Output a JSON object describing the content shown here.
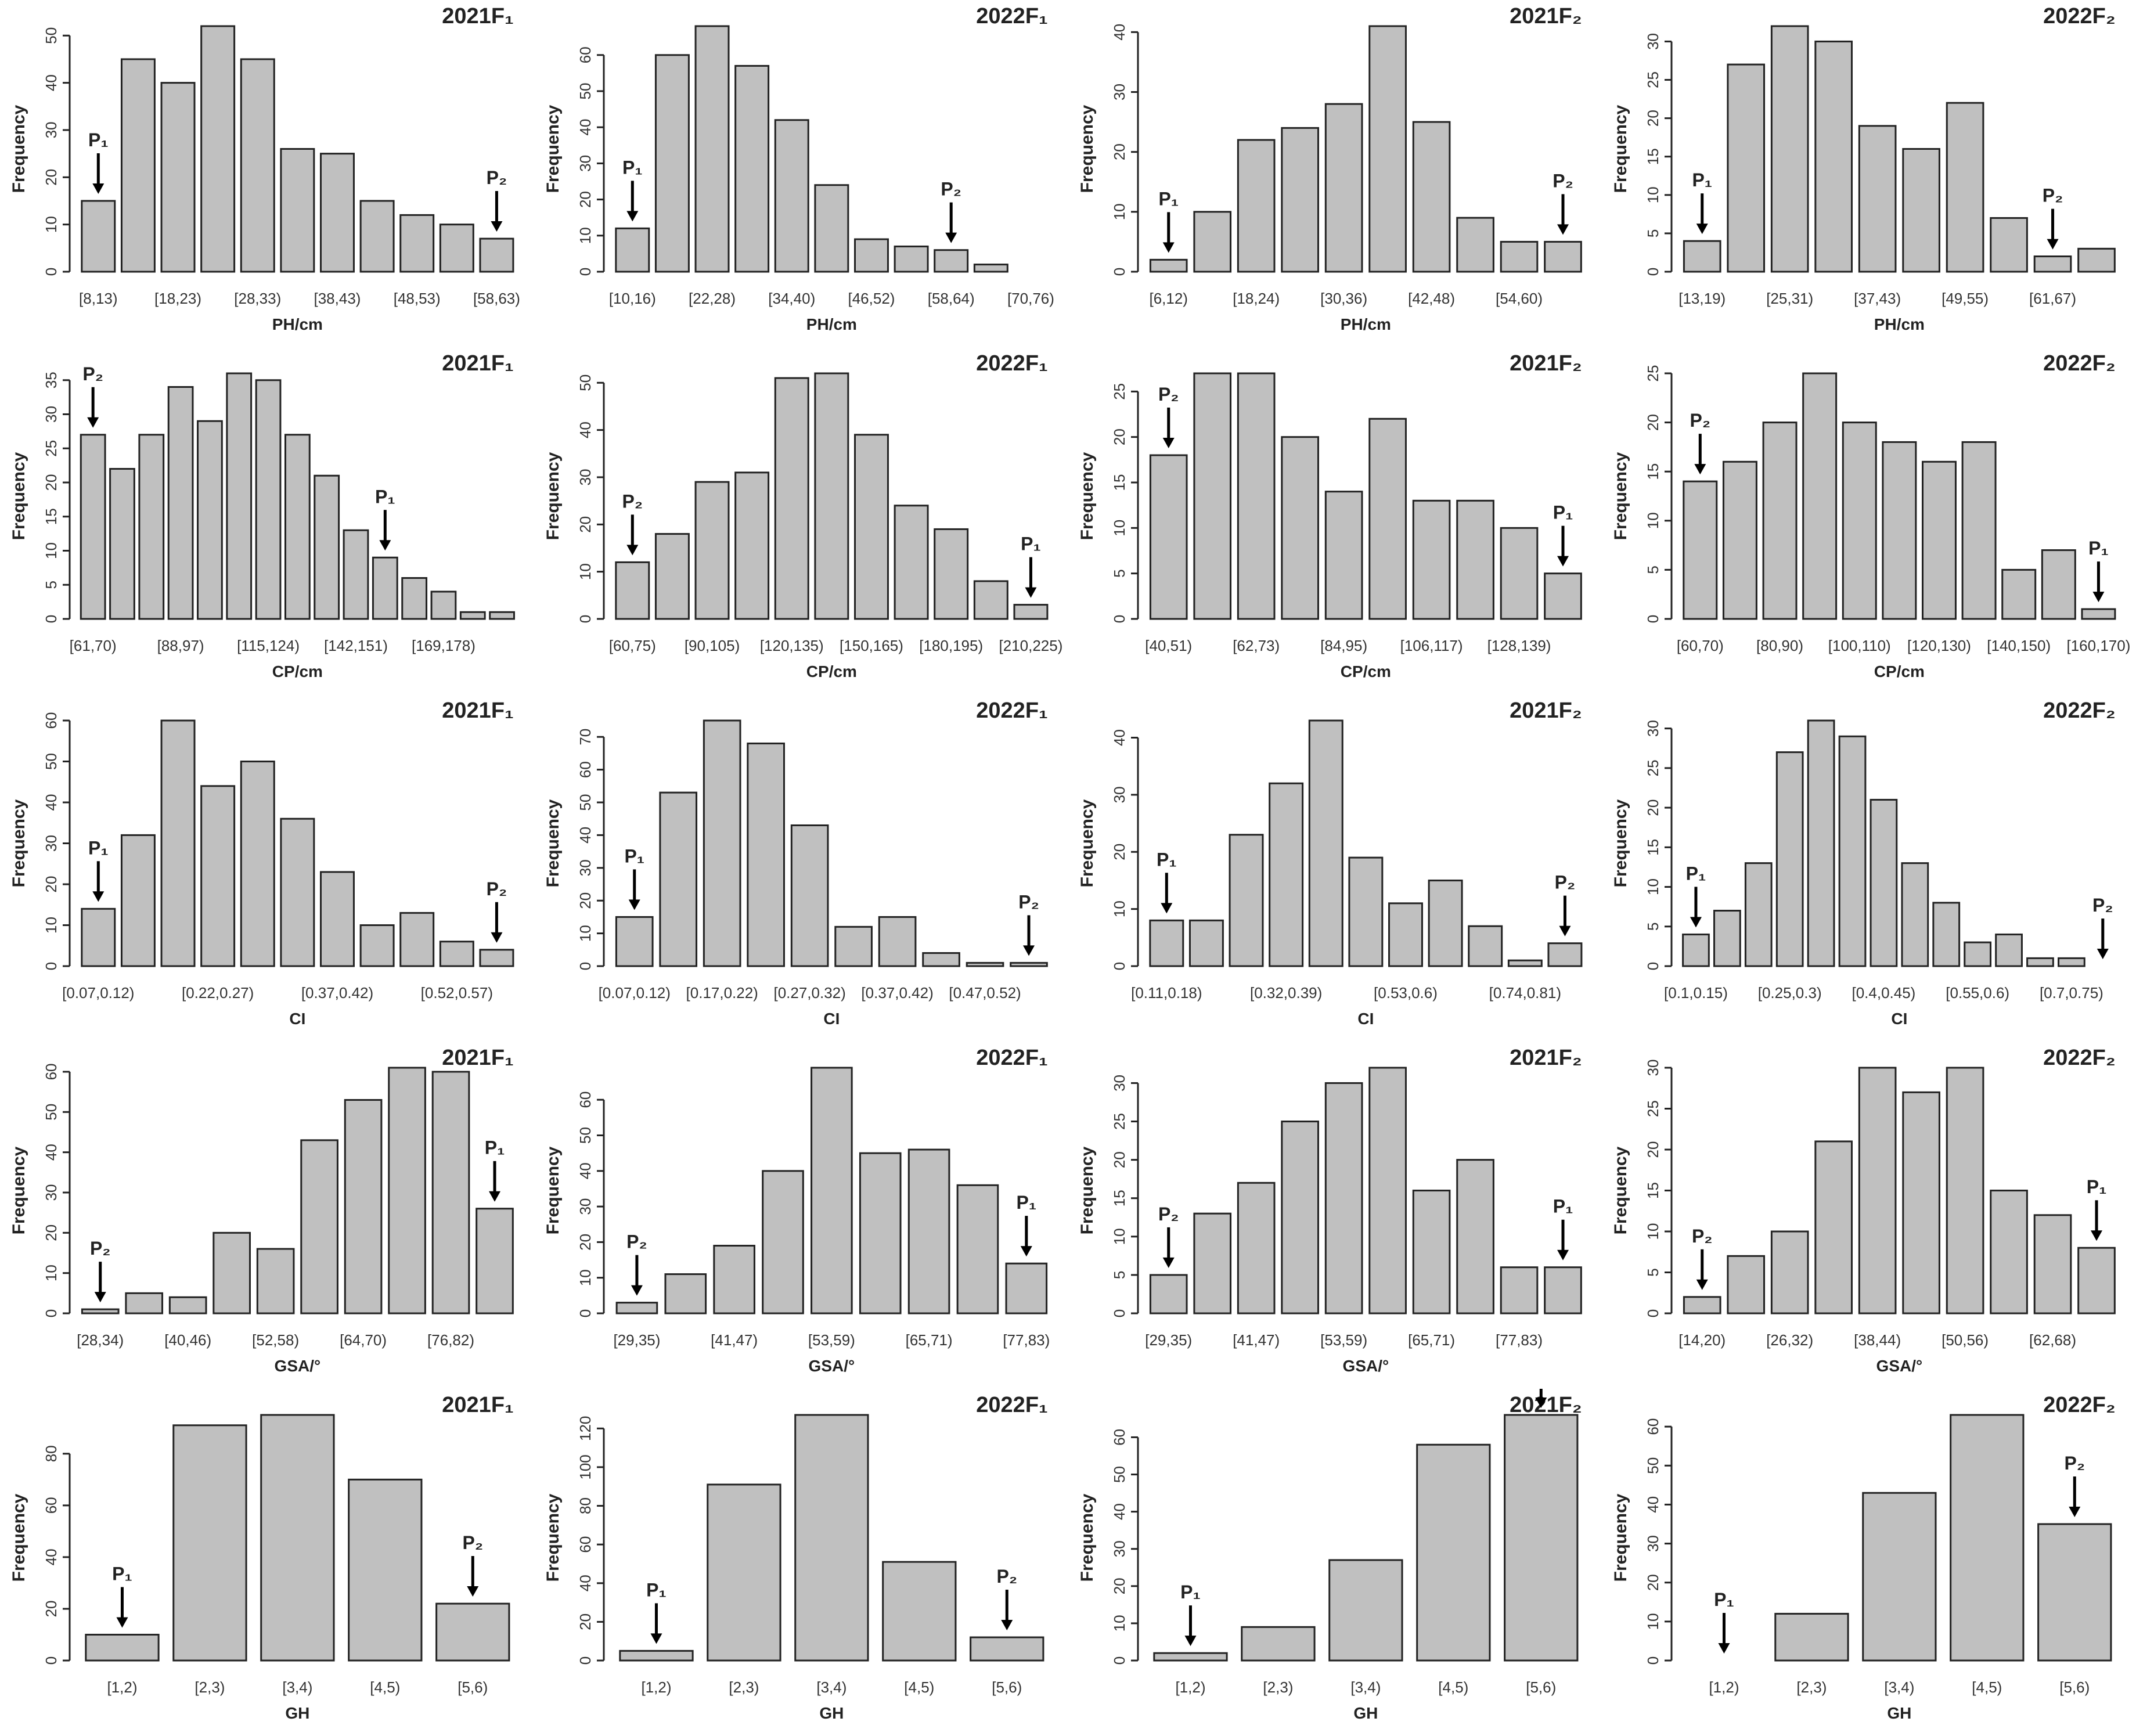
{
  "chart_data": [
    {
      "type": "bar",
      "title": "2021F₁",
      "xlabel": "PH/cm",
      "ylabel": "Frequency",
      "ylim": [
        0,
        52
      ],
      "yticks": [
        0,
        10,
        20,
        30,
        40,
        50
      ],
      "categories": [
        "[8,13)",
        "[13,18)",
        "[18,23)",
        "[23,28)",
        "[28,33)",
        "[33,38)",
        "[38,43)",
        "[43,48)",
        "[48,53)",
        "[53,58)",
        "[58,63)"
      ],
      "shown_labels": [
        "[8,13)",
        "[18,23)",
        "[28,33)",
        "[38,43)",
        "[48,53)",
        "[58,63)"
      ],
      "values": [
        15,
        45,
        40,
        52,
        45,
        26,
        25,
        15,
        12,
        10,
        7
      ],
      "markers": [
        {
          "label": "P₁",
          "index": 0
        },
        {
          "label": "P₂",
          "index": 10
        }
      ]
    },
    {
      "type": "bar",
      "title": "2022F₁",
      "xlabel": "PH/cm",
      "ylabel": "Frequency",
      "ylim": [
        0,
        68
      ],
      "yticks": [
        0,
        10,
        20,
        30,
        40,
        50,
        60
      ],
      "categories": [
        "[10,16)",
        "[16,22)",
        "[22,28)",
        "[28,34)",
        "[34,40)",
        "[40,46)",
        "[46,52)",
        "[52,58)",
        "[58,64)",
        "[64,70)",
        "[70,76)"
      ],
      "shown_labels": [
        "[10,16)",
        "[22,28)",
        "[34,40)",
        "[46,52)",
        "[58,64)",
        "[70,76)"
      ],
      "values": [
        12,
        60,
        68,
        57,
        42,
        24,
        9,
        7,
        6,
        2,
        0
      ],
      "markers": [
        {
          "label": "P₁",
          "index": 0
        },
        {
          "label": "P₂",
          "index": 8
        }
      ]
    },
    {
      "type": "bar",
      "title": "2021F₂",
      "xlabel": "PH/cm",
      "ylabel": "Frequency",
      "ylim": [
        0,
        41
      ],
      "yticks": [
        0,
        10,
        20,
        30,
        40
      ],
      "categories": [
        "[6,12)",
        "[12,18)",
        "[18,24)",
        "[24,30)",
        "[30,36)",
        "[36,42)",
        "[42,48)",
        "[48,54)",
        "[54,60)",
        "[60,66)"
      ],
      "shown_labels": [
        "[6,12)",
        "[18,24)",
        "[30,36)",
        "[42,48)",
        "[54,60)"
      ],
      "values": [
        2,
        10,
        22,
        24,
        28,
        41,
        25,
        9,
        5,
        5
      ],
      "markers": [
        {
          "label": "P₁",
          "index": 0
        },
        {
          "label": "P₂",
          "index": 9
        }
      ]
    },
    {
      "type": "bar",
      "title": "2022F₂",
      "xlabel": "PH/cm",
      "ylabel": "Frequency",
      "ylim": [
        0,
        32
      ],
      "yticks": [
        0,
        5,
        10,
        15,
        20,
        25,
        30
      ],
      "categories": [
        "[13,19)",
        "[19,25)",
        "[25,31)",
        "[31,37)",
        "[37,43)",
        "[43,49)",
        "[49,55)",
        "[55,61)",
        "[61,67)",
        "[67,73)"
      ],
      "shown_labels": [
        "[13,19)",
        "[25,31)",
        "[37,43)",
        "[49,55)",
        "[61,67)"
      ],
      "values": [
        4,
        27,
        32,
        30,
        19,
        16,
        22,
        7,
        2,
        3
      ],
      "markers": [
        {
          "label": "P₁",
          "index": 0
        },
        {
          "label": "P₂",
          "index": 8
        }
      ]
    },
    {
      "type": "bar",
      "title": "2021F₁",
      "xlabel": "CP/cm",
      "ylabel": "Frequency",
      "ylim": [
        0,
        36
      ],
      "yticks": [
        0,
        5,
        10,
        15,
        20,
        25,
        30,
        35
      ],
      "categories": [
        "[61,70)",
        "[70,79)",
        "[79,88)",
        "[88,97)",
        "[97,106)",
        "[106,115)",
        "[115,124)",
        "[124,133)",
        "[133,142)",
        "[142,151)",
        "[151,160)",
        "[160,169)",
        "[169,178)",
        "[178,187)",
        "[187,196)"
      ],
      "shown_labels": [
        "[61,70)",
        "[88,97)",
        "[115,124)",
        "[142,151)",
        "[169,178)"
      ],
      "values": [
        27,
        22,
        27,
        34,
        29,
        36,
        35,
        27,
        21,
        13,
        9,
        6,
        4,
        1,
        1
      ],
      "markers": [
        {
          "label": "P₂",
          "index": 0
        },
        {
          "label": "P₁",
          "index": 10
        }
      ]
    },
    {
      "type": "bar",
      "title": "2022F₁",
      "xlabel": "CP/cm",
      "ylabel": "Frequency",
      "ylim": [
        0,
        52
      ],
      "yticks": [
        0,
        10,
        20,
        30,
        40,
        50
      ],
      "categories": [
        "[60,75)",
        "[75,90)",
        "[90,105)",
        "[105,120)",
        "[120,135)",
        "[135,150)",
        "[150,165)",
        "[165,180)",
        "[180,195)",
        "[195,210)",
        "[210,225)"
      ],
      "shown_labels": [
        "[60,75)",
        "[90,105)",
        "[120,135)",
        "[150,165)",
        "[180,195)",
        "[210,225)"
      ],
      "values": [
        12,
        18,
        29,
        31,
        51,
        52,
        39,
        24,
        19,
        8,
        3
      ],
      "markers": [
        {
          "label": "P₂",
          "index": 0
        },
        {
          "label": "P₁",
          "index": 10
        }
      ]
    },
    {
      "type": "bar",
      "title": "2021F₂",
      "xlabel": "CP/cm",
      "ylabel": "Frequency",
      "ylim": [
        0,
        27
      ],
      "yticks": [
        0,
        5,
        10,
        15,
        20,
        25
      ],
      "categories": [
        "[40,51)",
        "[51,62)",
        "[62,73)",
        "[73,84)",
        "[84,95)",
        "[95,106)",
        "[106,117)",
        "[117,128)",
        "[128,139)",
        "[139,150)"
      ],
      "shown_labels": [
        "[40,51)",
        "[62,73)",
        "[84,95)",
        "[106,117)",
        "[128,139)"
      ],
      "values": [
        18,
        27,
        27,
        20,
        14,
        22,
        13,
        13,
        10,
        5
      ],
      "markers": [
        {
          "label": "P₂",
          "index": 0
        },
        {
          "label": "P₁",
          "index": 9
        }
      ]
    },
    {
      "type": "bar",
      "title": "2022F₂",
      "xlabel": "CP/cm",
      "ylabel": "Frequency",
      "ylim": [
        0,
        25
      ],
      "yticks": [
        0,
        5,
        10,
        15,
        20,
        25
      ],
      "categories": [
        "[60,70)",
        "[70,80)",
        "[80,90)",
        "[90,100)",
        "[100,110)",
        "[110,120)",
        "[120,130)",
        "[130,140)",
        "[140,150)",
        "[150,160)",
        "[160,170)"
      ],
      "shown_labels": [
        "[60,70)",
        "[80,90)",
        "[100,110)",
        "[120,130)",
        "[140,150)",
        "[160,170)"
      ],
      "values": [
        14,
        16,
        20,
        25,
        20,
        18,
        16,
        18,
        5,
        7,
        1
      ],
      "markers": [
        {
          "label": "P₂",
          "index": 0
        },
        {
          "label": "P₁",
          "index": 10
        }
      ]
    },
    {
      "type": "bar",
      "title": "2021F₁",
      "xlabel": "CI",
      "ylabel": "Frequency",
      "ylim": [
        0,
        60
      ],
      "yticks": [
        0,
        10,
        20,
        30,
        40,
        50,
        60
      ],
      "categories": [
        "[0.07,0.12)",
        "[0.12,0.17)",
        "[0.17,0.22)",
        "[0.22,0.27)",
        "[0.27,0.32)",
        "[0.32,0.37)",
        "[0.37,0.42)",
        "[0.42,0.47)",
        "[0.47,0.52)",
        "[0.52,0.57)",
        "[0.57,0.62)"
      ],
      "shown_labels": [
        "[0.07,0.12)",
        "[0.22,0.27)",
        "[0.37,0.42)",
        "[0.52,0.57)"
      ],
      "values": [
        14,
        32,
        60,
        44,
        50,
        36,
        23,
        10,
        13,
        6,
        4
      ],
      "markers": [
        {
          "label": "P₁",
          "index": 0
        },
        {
          "label": "P₂",
          "index": 10
        }
      ]
    },
    {
      "type": "bar",
      "title": "2022F₁",
      "xlabel": "CI",
      "ylabel": "Frequency",
      "ylim": [
        0,
        75
      ],
      "yticks": [
        0,
        10,
        20,
        30,
        40,
        50,
        60,
        70
      ],
      "categories": [
        "[0.07,0.12)",
        "[0.12,0.17)",
        "[0.17,0.22)",
        "[0.22,0.27)",
        "[0.27,0.32)",
        "[0.32,0.37)",
        "[0.37,0.42)",
        "[0.42,0.47)",
        "[0.47,0.52)",
        "[0.52,0.57)"
      ],
      "shown_labels": [
        "[0.07,0.12)",
        "[0.17,0.22)",
        "[0.27,0.32)",
        "[0.37,0.42)",
        "[0.47,0.52)"
      ],
      "values": [
        15,
        53,
        75,
        68,
        43,
        12,
        15,
        4,
        1,
        1
      ],
      "markers": [
        {
          "label": "P₁",
          "index": 0
        },
        {
          "label": "P₂",
          "index": 9
        }
      ]
    },
    {
      "type": "bar",
      "title": "2021F₂",
      "xlabel": "CI",
      "ylabel": "Frequency",
      "ylim": [
        0,
        43
      ],
      "yticks": [
        0,
        10,
        20,
        30,
        40
      ],
      "categories": [
        "[0.11,0.18)",
        "[0.18,0.25)",
        "[0.25,0.32)",
        "[0.32,0.39)",
        "[0.39,0.46)",
        "[0.46,0.53)",
        "[0.53,0.6)",
        "[0.6,0.67)",
        "[0.67,0.74)",
        "[0.74,0.81)",
        "[0.81,0.88)"
      ],
      "shown_labels": [
        "[0.11,0.18)",
        "[0.32,0.39)",
        "[0.53,0.6)",
        "[0.74,0.81)"
      ],
      "values": [
        8,
        8,
        23,
        32,
        43,
        19,
        11,
        15,
        7,
        1,
        4
      ],
      "markers": [
        {
          "label": "P₁",
          "index": 0
        },
        {
          "label": "P₂",
          "index": 10
        }
      ]
    },
    {
      "type": "bar",
      "title": "2022F₂",
      "xlabel": "CI",
      "ylabel": "Frequency",
      "ylim": [
        0,
        31
      ],
      "yticks": [
        0,
        5,
        10,
        15,
        20,
        25,
        30
      ],
      "categories": [
        "[0.1,0.15)",
        "[0.15,0.2)",
        "[0.2,0.25)",
        "[0.25,0.3)",
        "[0.3,0.35)",
        "[0.35,0.4)",
        "[0.4,0.45)",
        "[0.45,0.5)",
        "[0.5,0.55)",
        "[0.55,0.6)",
        "[0.6,0.65)",
        "[0.65,0.7)",
        "[0.7,0.75)",
        "[0.75,0.8)"
      ],
      "shown_labels": [
        "[0.1,0.15)",
        "[0.25,0.3)",
        "[0.4,0.45)",
        "[0.55,0.6)",
        "[0.7,0.75)"
      ],
      "values": [
        4,
        7,
        13,
        27,
        31,
        29,
        21,
        13,
        8,
        3,
        4,
        1,
        1,
        0
      ],
      "markers": [
        {
          "label": "P₁",
          "index": 0
        },
        {
          "label": "P₂",
          "index": 13
        }
      ]
    },
    {
      "type": "bar",
      "title": "2021F₁",
      "xlabel": "GSA/°",
      "ylabel": "Frequency",
      "ylim": [
        0,
        61
      ],
      "yticks": [
        0,
        10,
        20,
        30,
        40,
        50,
        60
      ],
      "categories": [
        "[28,34)",
        "[34,40)",
        "[40,46)",
        "[46,52)",
        "[52,58)",
        "[58,64)",
        "[64,70)",
        "[70,76)",
        "[76,82)",
        "[82,88)"
      ],
      "shown_labels": [
        "[28,34)",
        "[40,46)",
        "[52,58)",
        "[64,70)",
        "[76,82)"
      ],
      "values": [
        1,
        5,
        4,
        20,
        16,
        43,
        53,
        61,
        60,
        26
      ],
      "markers": [
        {
          "label": "P₂",
          "index": 0
        },
        {
          "label": "P₁",
          "index": 9
        }
      ]
    },
    {
      "type": "bar",
      "title": "2022F₁",
      "xlabel": "GSA/°",
      "ylabel": "Frequency",
      "ylim": [
        0,
        69
      ],
      "yticks": [
        0,
        10,
        20,
        30,
        40,
        50,
        60
      ],
      "categories": [
        "[29,35)",
        "[35,41)",
        "[41,47)",
        "[47,53)",
        "[53,59)",
        "[59,65)",
        "[65,71)",
        "[71,77)",
        "[77,83)"
      ],
      "shown_labels": [
        "[29,35)",
        "[41,47)",
        "[53,59)",
        "[65,71)",
        "[77,83)"
      ],
      "values": [
        3,
        11,
        19,
        40,
        69,
        45,
        46,
        36,
        14
      ],
      "markers": [
        {
          "label": "P₂",
          "index": 0
        },
        {
          "label": "P₁",
          "index": 8
        }
      ]
    },
    {
      "type": "bar",
      "title": "2021F₂",
      "xlabel": "GSA/°",
      "ylabel": "Frequency",
      "ylim": [
        0,
        32
      ],
      "yticks": [
        0,
        5,
        10,
        15,
        20,
        25,
        30
      ],
      "categories": [
        "[29,35)",
        "[35,41)",
        "[41,47)",
        "[47,53)",
        "[53,59)",
        "[59,65)",
        "[65,71)",
        "[71,77)",
        "[77,83)",
        "[83,89)"
      ],
      "shown_labels": [
        "[29,35)",
        "[41,47)",
        "[53,59)",
        "[65,71)",
        "[77,83)"
      ],
      "values": [
        5,
        13,
        17,
        25,
        30,
        32,
        16,
        20,
        6,
        6
      ],
      "markers": [
        {
          "label": "P₂",
          "index": 0
        },
        {
          "label": "P₁",
          "index": 9
        }
      ]
    },
    {
      "type": "bar",
      "title": "2022F₂",
      "xlabel": "GSA/°",
      "ylabel": "Frequency",
      "ylim": [
        0,
        30
      ],
      "yticks": [
        0,
        5,
        10,
        15,
        20,
        25,
        30
      ],
      "categories": [
        "[14,20)",
        "[20,26)",
        "[26,32)",
        "[32,38)",
        "[38,44)",
        "[44,50)",
        "[50,56)",
        "[56,62)",
        "[62,68)",
        "[68,74)"
      ],
      "shown_labels": [
        "[14,20)",
        "[26,32)",
        "[38,44)",
        "[50,56)",
        "[62,68)"
      ],
      "values": [
        2,
        7,
        10,
        21,
        30,
        27,
        30,
        15,
        12,
        8
      ],
      "markers": [
        {
          "label": "P₂",
          "index": 0
        },
        {
          "label": "P₁",
          "index": 9
        }
      ]
    },
    {
      "type": "bar",
      "title": "2021F₁",
      "xlabel": "GH",
      "ylabel": "Frequency",
      "ylim": [
        0,
        95
      ],
      "yticks": [
        0,
        20,
        40,
        60,
        80
      ],
      "categories": [
        "[1,2)",
        "[2,3)",
        "[3,4)",
        "[4,5)",
        "[5,6)"
      ],
      "shown_labels": [
        "[1,2)",
        "[2,3)",
        "[3,4)",
        "[4,5)",
        "[5,6)"
      ],
      "values": [
        10,
        91,
        95,
        70,
        22
      ],
      "markers": [
        {
          "label": "P₁",
          "index": 0
        },
        {
          "label": "P₂",
          "index": 4
        }
      ]
    },
    {
      "type": "bar",
      "title": "2022F₁",
      "xlabel": "GH",
      "ylabel": "Frequency",
      "ylim": [
        0,
        127
      ],
      "yticks": [
        0,
        20,
        40,
        60,
        80,
        100,
        120
      ],
      "categories": [
        "[1,2)",
        "[2,3)",
        "[3,4)",
        "[4,5)",
        "[5,6)"
      ],
      "shown_labels": [
        "[1,2)",
        "[2,3)",
        "[3,4)",
        "[4,5)",
        "[5,6)"
      ],
      "values": [
        5,
        91,
        127,
        51,
        12
      ],
      "markers": [
        {
          "label": "P₁",
          "index": 0
        },
        {
          "label": "P₂",
          "index": 4
        }
      ]
    },
    {
      "type": "bar",
      "title": "2021F₂",
      "xlabel": "GH",
      "ylabel": "Frequency",
      "ylim": [
        0,
        66
      ],
      "yticks": [
        0,
        10,
        20,
        30,
        40,
        50,
        60
      ],
      "categories": [
        "[1,2)",
        "[2,3)",
        "[3,4)",
        "[4,5)",
        "[5,6)"
      ],
      "shown_labels": [
        "[1,2)",
        "[2,3)",
        "[3,4)",
        "[4,5)",
        "[5,6)"
      ],
      "values": [
        2,
        9,
        27,
        58,
        66
      ],
      "markers": [
        {
          "label": "P₁",
          "index": 0
        },
        {
          "label": "P₂",
          "index": 4
        }
      ]
    },
    {
      "type": "bar",
      "title": "2022F₂",
      "xlabel": "GH",
      "ylabel": "Frequency",
      "ylim": [
        0,
        63
      ],
      "yticks": [
        0,
        10,
        20,
        30,
        40,
        50,
        60
      ],
      "categories": [
        "[1,2)",
        "[2,3)",
        "[3,4)",
        "[4,5)",
        "[5,6)"
      ],
      "shown_labels": [
        "[1,2)",
        "[2,3)",
        "[3,4)",
        "[4,5)",
        "[5,6)"
      ],
      "values": [
        0,
        12,
        43,
        63,
        35
      ],
      "markers": [
        {
          "label": "P₁",
          "index": 0
        },
        {
          "label": "P₂",
          "index": 4
        }
      ]
    }
  ]
}
